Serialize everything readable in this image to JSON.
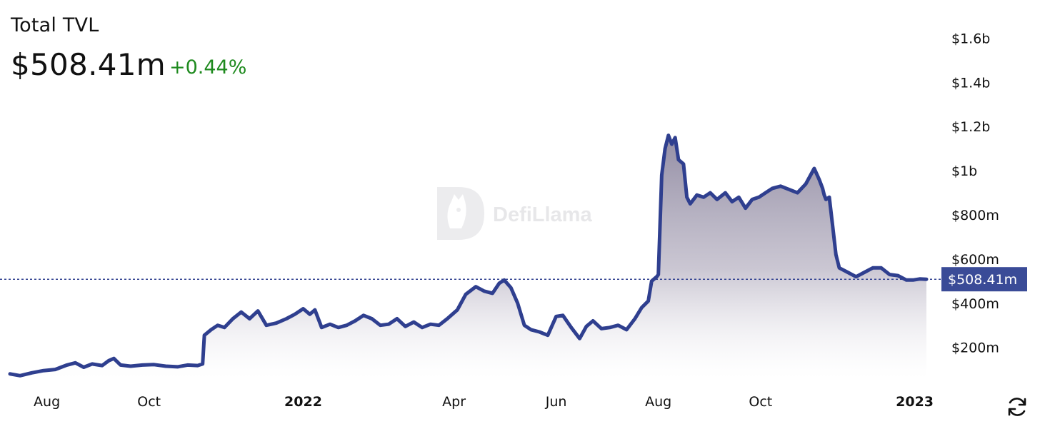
{
  "header": {
    "title": "Total TVL",
    "value": "$508.41m",
    "change": "+0.44%"
  },
  "watermark": {
    "text": "DefiLlama",
    "icon": "defillama-logo-icon"
  },
  "colors": {
    "line": "#2f3f8f",
    "fill_top": "#8e88a0",
    "positive": "#1e8a1e",
    "reference_line": "#2f3f8f",
    "badge_bg": "#3a4b97"
  },
  "icons": {
    "refresh": "refresh-icon"
  },
  "chart_data": {
    "type": "area",
    "title": "Total TVL",
    "xlabel": "",
    "ylabel": "",
    "x_ticks": [
      {
        "label": "Aug",
        "date": "2021-08-01",
        "year": false
      },
      {
        "label": "Oct",
        "date": "2021-10-01",
        "year": false
      },
      {
        "label": "2022",
        "date": "2022-01-01",
        "year": true
      },
      {
        "label": "Apr",
        "date": "2022-04-01",
        "year": false
      },
      {
        "label": "Jun",
        "date": "2022-06-01",
        "year": false
      },
      {
        "label": "Aug",
        "date": "2022-08-01",
        "year": false
      },
      {
        "label": "Oct",
        "date": "2022-10-01",
        "year": false
      },
      {
        "label": "2023",
        "date": "2023-01-01",
        "year": true
      }
    ],
    "y_ticks": [
      {
        "label": "$200m",
        "value": 200000000
      },
      {
        "label": "$400m",
        "value": 400000000
      },
      {
        "label": "$600m",
        "value": 600000000
      },
      {
        "label": "$800m",
        "value": 800000000
      },
      {
        "label": "$1b",
        "value": 1000000000
      },
      {
        "label": "$1.2b",
        "value": 1200000000
      },
      {
        "label": "$1.4b",
        "value": 1400000000
      },
      {
        "label": "$1.6b",
        "value": 1600000000
      }
    ],
    "ylim": [
      60000000,
      1650000000
    ],
    "xlim": [
      "2021-07-10",
      "2023-01-08"
    ],
    "current": {
      "label": "$508.41m",
      "value": 508410000
    },
    "grid": false,
    "legend": "none",
    "series": [
      {
        "x": [
          "2021-07-10",
          "2021-07-16",
          "2021-07-23",
          "2021-07-30",
          "2021-08-06",
          "2021-08-13",
          "2021-08-18",
          "2021-08-23",
          "2021-08-28",
          "2021-09-03",
          "2021-09-07",
          "2021-09-10",
          "2021-09-14",
          "2021-09-20",
          "2021-09-27",
          "2021-10-04",
          "2021-10-11",
          "2021-10-18",
          "2021-10-24",
          "2021-10-30",
          "2021-11-02",
          "2021-11-03",
          "2021-11-07",
          "2021-11-11",
          "2021-11-15",
          "2021-11-20",
          "2021-11-25",
          "2021-11-30",
          "2021-12-05",
          "2021-12-10",
          "2021-12-16",
          "2021-12-22",
          "2021-12-27",
          "2022-01-01",
          "2022-01-05",
          "2022-01-08",
          "2022-01-12",
          "2022-01-17",
          "2022-01-22",
          "2022-01-27",
          "2022-02-01",
          "2022-02-06",
          "2022-02-11",
          "2022-02-16",
          "2022-02-21",
          "2022-02-26",
          "2022-03-03",
          "2022-03-08",
          "2022-03-13",
          "2022-03-18",
          "2022-03-23",
          "2022-03-28",
          "2022-04-03",
          "2022-04-08",
          "2022-04-14",
          "2022-04-19",
          "2022-04-24",
          "2022-04-28",
          "2022-05-01",
          "2022-05-05",
          "2022-05-09",
          "2022-05-13",
          "2022-05-17",
          "2022-05-22",
          "2022-05-27",
          "2022-06-01",
          "2022-06-05",
          "2022-06-10",
          "2022-06-15",
          "2022-06-19",
          "2022-06-23",
          "2022-06-28",
          "2022-07-03",
          "2022-07-08",
          "2022-07-13",
          "2022-07-18",
          "2022-07-22",
          "2022-07-26",
          "2022-07-28",
          "2022-07-31",
          "2022-08-01",
          "2022-08-03",
          "2022-08-05",
          "2022-08-07",
          "2022-08-09",
          "2022-08-11",
          "2022-08-13",
          "2022-08-16",
          "2022-08-18",
          "2022-08-20",
          "2022-08-24",
          "2022-08-28",
          "2022-09-01",
          "2022-09-05",
          "2022-09-10",
          "2022-09-14",
          "2022-09-18",
          "2022-09-22",
          "2022-09-26",
          "2022-09-30",
          "2022-10-04",
          "2022-10-08",
          "2022-10-13",
          "2022-10-18",
          "2022-10-23",
          "2022-10-28",
          "2022-11-02",
          "2022-11-05",
          "2022-11-07",
          "2022-11-08",
          "2022-11-09",
          "2022-11-11",
          "2022-11-13",
          "2022-11-15",
          "2022-11-17",
          "2022-11-22",
          "2022-11-27",
          "2022-12-02",
          "2022-12-07",
          "2022-12-12",
          "2022-12-17",
          "2022-12-22",
          "2022-12-27",
          "2022-12-31",
          "2023-01-04",
          "2023-01-08"
        ],
        "y": [
          80000000,
          72000000,
          85000000,
          95000000,
          100000000,
          120000000,
          130000000,
          110000000,
          125000000,
          118000000,
          140000000,
          150000000,
          120000000,
          115000000,
          120000000,
          122000000,
          115000000,
          112000000,
          120000000,
          118000000,
          125000000,
          255000000,
          280000000,
          300000000,
          290000000,
          330000000,
          360000000,
          330000000,
          365000000,
          300000000,
          310000000,
          330000000,
          350000000,
          375000000,
          350000000,
          370000000,
          290000000,
          305000000,
          290000000,
          300000000,
          320000000,
          345000000,
          330000000,
          300000000,
          305000000,
          330000000,
          295000000,
          315000000,
          290000000,
          305000000,
          300000000,
          330000000,
          370000000,
          440000000,
          475000000,
          455000000,
          445000000,
          490000000,
          505000000,
          470000000,
          400000000,
          300000000,
          280000000,
          270000000,
          255000000,
          340000000,
          345000000,
          290000000,
          240000000,
          295000000,
          320000000,
          285000000,
          290000000,
          300000000,
          280000000,
          330000000,
          380000000,
          410000000,
          500000000,
          520000000,
          530000000,
          980000000,
          1100000000,
          1160000000,
          1120000000,
          1150000000,
          1050000000,
          1030000000,
          880000000,
          850000000,
          890000000,
          880000000,
          900000000,
          870000000,
          900000000,
          860000000,
          880000000,
          830000000,
          870000000,
          880000000,
          900000000,
          920000000,
          930000000,
          915000000,
          900000000,
          940000000,
          1010000000,
          960000000,
          920000000,
          890000000,
          870000000,
          880000000,
          750000000,
          620000000,
          560000000,
          540000000,
          520000000,
          540000000,
          560000000,
          560000000,
          530000000,
          525000000,
          505000000,
          505000000,
          510000000,
          508410000
        ]
      }
    ]
  }
}
